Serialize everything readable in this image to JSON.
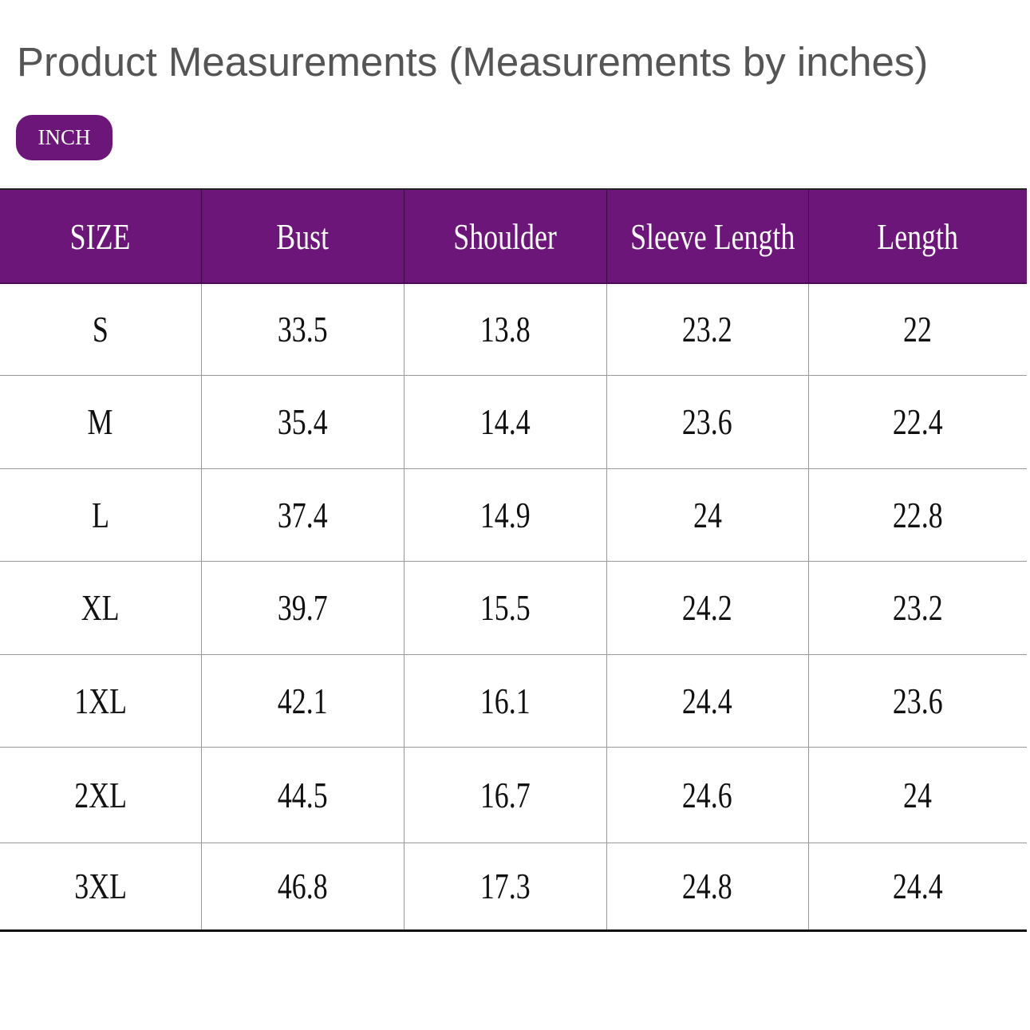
{
  "title": "Product Measurements (Measurements by inches)",
  "unit_badge": "INCH",
  "colors": {
    "header_bg": "#6c1679",
    "header_text": "#ffffff"
  },
  "table": {
    "headers": [
      "SIZE",
      "Bust",
      "Shoulder",
      "Sleeve Length",
      "Length"
    ],
    "rows": [
      [
        "S",
        "33.5",
        "13.8",
        "23.2",
        "22"
      ],
      [
        "M",
        "35.4",
        "14.4",
        "23.6",
        "22.4"
      ],
      [
        "L",
        "37.4",
        "14.9",
        "24",
        "22.8"
      ],
      [
        "XL",
        "39.7",
        "15.5",
        "24.2",
        "23.2"
      ],
      [
        "1XL",
        "42.1",
        "16.1",
        "24.4",
        "23.6"
      ],
      [
        "2XL",
        "44.5",
        "16.7",
        "24.6",
        "24"
      ],
      [
        "3XL",
        "46.8",
        "17.3",
        "24.8",
        "24.4"
      ]
    ]
  }
}
